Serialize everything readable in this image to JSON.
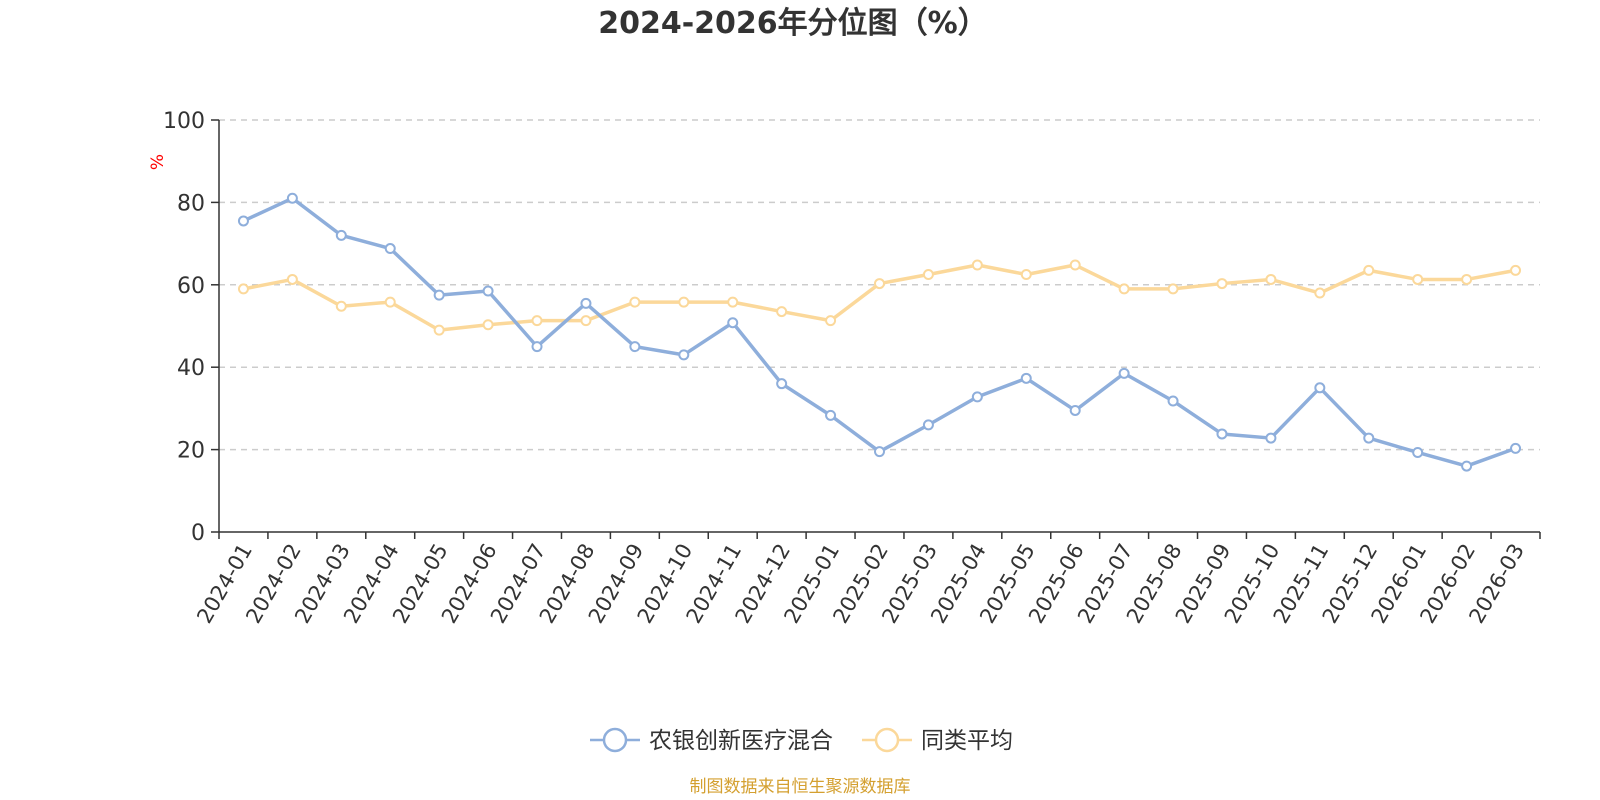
{
  "chart_data": {
    "type": "line",
    "title": "2024-2026年分位图（%）",
    "ylabel": "%",
    "xlabel": "",
    "ylim": [
      0,
      100
    ],
    "yticks": [
      0,
      20,
      40,
      60,
      80,
      100
    ],
    "grid": true,
    "legend_position": "bottom-center",
    "categories": [
      "2024-01",
      "2024-02",
      "2024-03",
      "2024-04",
      "2024-05",
      "2024-06",
      "2024-07",
      "2024-08",
      "2024-09",
      "2024-10",
      "2024-11",
      "2024-12",
      "2025-01",
      "2025-02",
      "2025-03",
      "2025-04",
      "2025-05",
      "2025-06",
      "2025-07",
      "2025-08",
      "2025-09",
      "2025-10",
      "2025-11",
      "2025-12",
      "2026-01",
      "2026-02",
      "2026-03"
    ],
    "series": [
      {
        "name": "农银创新医疗混合",
        "color": "#8eaedb",
        "values": [
          75.5,
          81,
          72,
          68.8,
          57.5,
          58.5,
          45,
          55.5,
          45,
          43,
          50.8,
          36,
          28.3,
          19.5,
          26,
          32.8,
          37.3,
          29.5,
          38.5,
          31.8,
          23.8,
          22.8,
          35,
          22.8,
          19.3,
          16,
          20.3
        ]
      },
      {
        "name": "同类平均",
        "color": "#fbd89a",
        "values": [
          59,
          61.3,
          54.8,
          55.8,
          49,
          50.3,
          51.3,
          51.3,
          55.8,
          55.8,
          55.8,
          53.5,
          51.3,
          60.3,
          62.5,
          64.8,
          62.5,
          64.8,
          59,
          59,
          60.3,
          61.3,
          58,
          63.5,
          61.3,
          61.3,
          63.5
        ]
      }
    ]
  },
  "colors": {
    "unit_label": "#ff0000",
    "source_text": "#d4a030",
    "axis": "#333333",
    "grid": "#cccccc"
  },
  "source": "制图数据来自恒生聚源数据库"
}
